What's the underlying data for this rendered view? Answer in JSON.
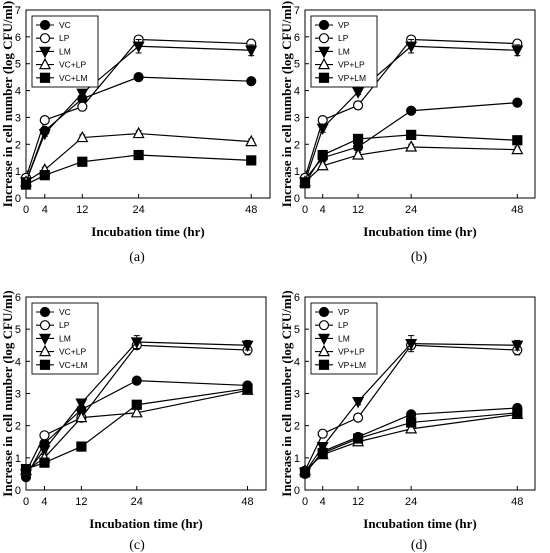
{
  "chart_data": [
    {
      "type": "line",
      "caption": "(a)",
      "xlabel": "Incubation time (hr)",
      "ylabel": "Increase in cell number (log CFU/ml)",
      "x": [
        0,
        4,
        12,
        24,
        48
      ],
      "xticks": [
        0,
        4,
        12,
        24,
        48
      ],
      "xlim": [
        0,
        52
      ],
      "ylim": [
        0,
        7
      ],
      "yticks": [
        0,
        1,
        2,
        3,
        4,
        5,
        6,
        7
      ],
      "legend_position": "top-left",
      "series": [
        {
          "name": "VC",
          "marker": "circle-filled",
          "values": [
            0.6,
            2.5,
            3.7,
            4.5,
            4.35
          ],
          "err": [
            0.1,
            0.1,
            0.1,
            0.08,
            0.1
          ]
        },
        {
          "name": "LP",
          "marker": "circle-open",
          "values": [
            0.75,
            2.9,
            3.4,
            5.9,
            5.75
          ],
          "err": [
            0.1,
            0.1,
            0.15,
            0.1,
            0.1
          ]
        },
        {
          "name": "LM",
          "marker": "triangle-down-filled",
          "values": [
            0.6,
            2.4,
            3.9,
            5.65,
            5.5
          ],
          "err": [
            0.1,
            0.1,
            0.1,
            0.25,
            0.2
          ]
        },
        {
          "name": "VC+LP",
          "marker": "triangle-up-open",
          "values": [
            0.6,
            1.05,
            2.25,
            2.4,
            2.1
          ],
          "err": [
            0.1,
            0.1,
            0.1,
            0.1,
            0.1
          ]
        },
        {
          "name": "VC+LM",
          "marker": "square-filled",
          "values": [
            0.5,
            0.85,
            1.35,
            1.6,
            1.4
          ],
          "err": [
            0.1,
            0.1,
            0.08,
            0.1,
            0.15
          ]
        }
      ]
    },
    {
      "type": "line",
      "caption": "(b)",
      "xlabel": "Incubation time (hr)",
      "ylabel": "Increase in cell number (log CFU/ml)",
      "x": [
        0,
        4,
        12,
        24,
        48
      ],
      "xticks": [
        0,
        4,
        12,
        24,
        48
      ],
      "xlim": [
        0,
        52
      ],
      "ylim": [
        0,
        7
      ],
      "yticks": [
        0,
        1,
        2,
        3,
        4,
        5,
        6,
        7
      ],
      "legend_position": "top-left",
      "series": [
        {
          "name": "VP",
          "marker": "circle-filled",
          "values": [
            0.7,
            1.5,
            1.9,
            3.25,
            3.55
          ],
          "err": [
            0.1,
            0.1,
            0.1,
            0.08,
            0.1
          ]
        },
        {
          "name": "LP",
          "marker": "circle-open",
          "values": [
            0.75,
            2.9,
            3.45,
            5.9,
            5.75
          ],
          "err": [
            0.1,
            0.1,
            0.15,
            0.1,
            0.1
          ]
        },
        {
          "name": "LM",
          "marker": "triangle-down-filled",
          "values": [
            0.6,
            2.6,
            3.95,
            5.65,
            5.5
          ],
          "err": [
            0.1,
            0.15,
            0.1,
            0.25,
            0.2
          ]
        },
        {
          "name": "VP+LP",
          "marker": "triangle-up-open",
          "values": [
            0.6,
            1.2,
            1.6,
            1.9,
            1.8
          ],
          "err": [
            0.1,
            0.1,
            0.1,
            0.1,
            0.1
          ]
        },
        {
          "name": "VP+LM",
          "marker": "square-filled",
          "values": [
            0.55,
            1.6,
            2.2,
            2.35,
            2.15
          ],
          "err": [
            0.1,
            0.1,
            0.1,
            0.1,
            0.1
          ]
        }
      ]
    },
    {
      "type": "line",
      "caption": "(c)",
      "xlabel": "Incubation time (hr)",
      "ylabel": "Increase in cell number (log CFU/ml)",
      "x": [
        0,
        4,
        12,
        24,
        48
      ],
      "xticks": [
        0,
        4,
        12,
        24,
        48
      ],
      "xlim": [
        0,
        52
      ],
      "ylim": [
        0,
        6
      ],
      "yticks": [
        0,
        1,
        2,
        3,
        4,
        5,
        6
      ],
      "legend_position": "top-left",
      "series": [
        {
          "name": "VC",
          "marker": "circle-filled",
          "values": [
            0.4,
            1.45,
            2.5,
            3.4,
            3.25
          ],
          "err": [
            0.1,
            0.1,
            0.1,
            0.08,
            0.1
          ]
        },
        {
          "name": "LP",
          "marker": "circle-open",
          "values": [
            0.55,
            1.7,
            2.25,
            4.5,
            4.35
          ],
          "err": [
            0.1,
            0.1,
            0.1,
            0.1,
            0.15
          ]
        },
        {
          "name": "LM",
          "marker": "triangle-down-filled",
          "values": [
            0.5,
            1.25,
            2.7,
            4.6,
            4.5
          ],
          "err": [
            0.1,
            0.1,
            0.1,
            0.2,
            0.15
          ]
        },
        {
          "name": "VC+LP",
          "marker": "triangle-up-open",
          "values": [
            0.6,
            1.0,
            2.25,
            2.4,
            3.1
          ],
          "err": [
            0.1,
            0.1,
            0.1,
            0.1,
            0.1
          ]
        },
        {
          "name": "VC+LM",
          "marker": "square-filled",
          "values": [
            0.65,
            0.85,
            1.35,
            2.65,
            3.15
          ],
          "err": [
            0.1,
            0.1,
            0.08,
            0.1,
            0.1
          ]
        }
      ]
    },
    {
      "type": "line",
      "caption": "(d)",
      "xlabel": "Incubation time (hr)",
      "ylabel": "Increase in cell number (log CFU/ml)",
      "x": [
        0,
        4,
        12,
        24,
        48
      ],
      "xticks": [
        0,
        4,
        12,
        24,
        48
      ],
      "xlim": [
        0,
        52
      ],
      "ylim": [
        0,
        6
      ],
      "yticks": [
        0,
        1,
        2,
        3,
        4,
        5,
        6
      ],
      "legend_position": "top-left",
      "series": [
        {
          "name": "VP",
          "marker": "circle-filled",
          "values": [
            0.5,
            1.2,
            1.65,
            2.35,
            2.55
          ],
          "err": [
            0.1,
            0.1,
            0.1,
            0.1,
            0.1
          ]
        },
        {
          "name": "LP",
          "marker": "circle-open",
          "values": [
            0.6,
            1.75,
            2.25,
            4.5,
            4.35
          ],
          "err": [
            0.1,
            0.1,
            0.1,
            0.1,
            0.15
          ]
        },
        {
          "name": "LM",
          "marker": "triangle-down-filled",
          "values": [
            0.55,
            1.35,
            2.75,
            4.55,
            4.5
          ],
          "err": [
            0.1,
            0.1,
            0.1,
            0.25,
            0.15
          ]
        },
        {
          "name": "VP+LP",
          "marker": "triangle-up-open",
          "values": [
            0.6,
            1.1,
            1.5,
            1.9,
            2.35
          ],
          "err": [
            0.1,
            0.1,
            0.1,
            0.1,
            0.1
          ]
        },
        {
          "name": "VP+LM",
          "marker": "square-filled",
          "values": [
            0.55,
            1.15,
            1.6,
            2.1,
            2.4
          ],
          "err": [
            0.1,
            0.1,
            0.08,
            0.1,
            0.1
          ]
        }
      ]
    }
  ]
}
